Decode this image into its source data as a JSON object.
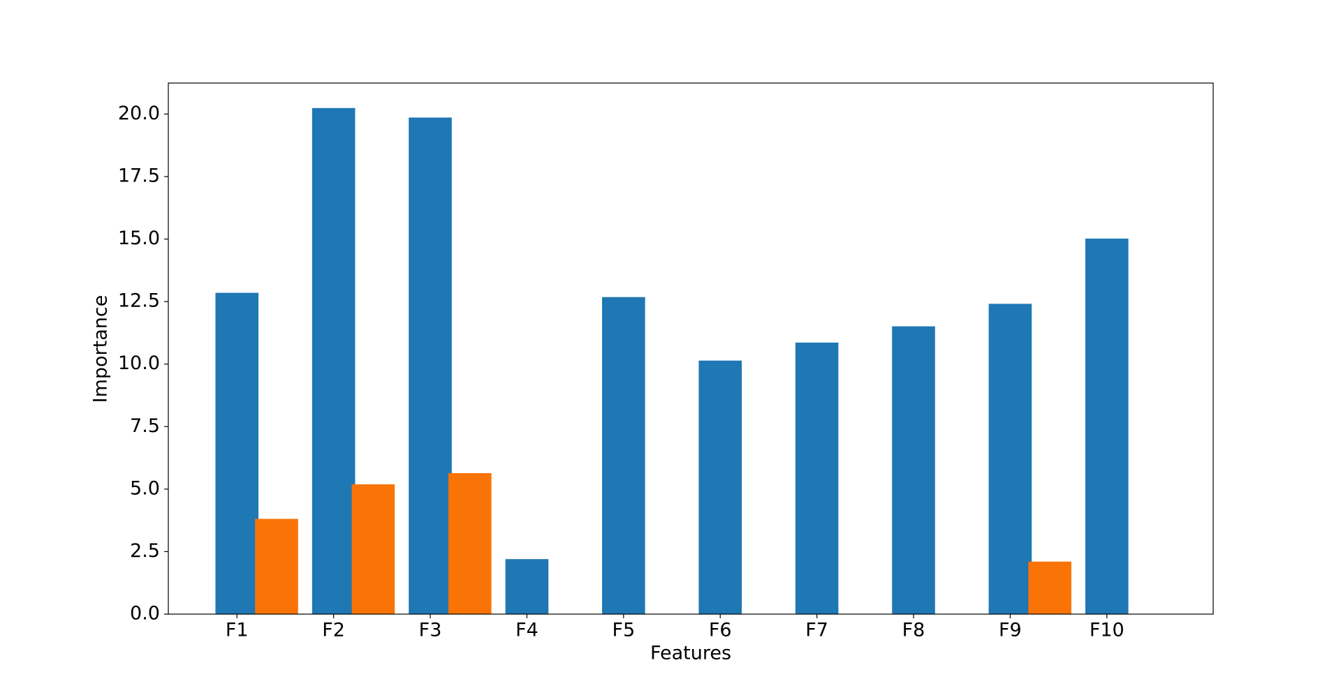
{
  "chart_data": {
    "type": "bar",
    "x_label": "Features",
    "y_label": "Importance",
    "categories": [
      "F1",
      "F2",
      "F3",
      "F4",
      "F5",
      "F6",
      "F7",
      "F8",
      "F9",
      "F10"
    ],
    "series": [
      {
        "color": "#1f77b4",
        "values": [
          12.85,
          20.24,
          19.86,
          2.2,
          12.68,
          10.14,
          10.86,
          11.51,
          12.41,
          15.02
        ]
      },
      {
        "color": "#f97306",
        "values": [
          3.81,
          5.19,
          5.64,
          null,
          null,
          null,
          null,
          null,
          2.1,
          null
        ]
      }
    ],
    "ylim": [
      0,
      21.24
    ],
    "yticks": [
      {
        "value": 0,
        "label": "0.0"
      },
      {
        "value": 2.5,
        "label": "2.5"
      },
      {
        "value": 5,
        "label": "5.0"
      },
      {
        "value": 7.5,
        "label": "7.5"
      },
      {
        "value": 10,
        "label": "10.0"
      },
      {
        "value": 12.5,
        "label": "12.5"
      },
      {
        "value": 15,
        "label": "15.0"
      },
      {
        "value": 17.5,
        "label": "17.5"
      },
      {
        "value": 20,
        "label": "20.0"
      }
    ],
    "grid": false
  }
}
